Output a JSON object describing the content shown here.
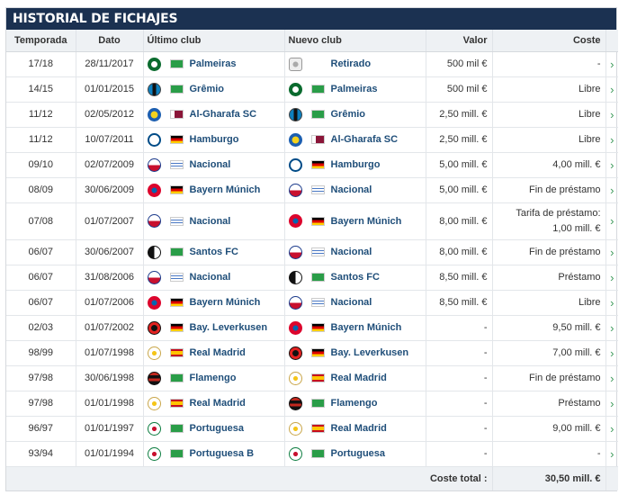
{
  "title": "HISTORIAL DE FICHAJES",
  "headers": {
    "season": "Temporada",
    "date": "Dato",
    "from": "Último club",
    "to": "Nuevo club",
    "value": "Valor",
    "fee": "Coste"
  },
  "colors": {
    "header_bg": "#1b3151",
    "link": "#1f4e79",
    "arrow": "#3d9a5b",
    "flag_brazil": "#2a9d48",
    "flag_germany": "#000000/#dd0000/#ffce00",
    "flag_uruguay": "#ffffff/#4a78c4",
    "flag_spain": "#c60b1e/#ffc400",
    "flag_qatar": "#8a1538"
  },
  "rows": [
    {
      "season": "17/18",
      "date": "28/11/2017",
      "from": "Palmeiras",
      "from_flag": "br",
      "from_crest": "palmeiras",
      "to": "Retirado",
      "to_flag": "",
      "to_crest": "retired",
      "value": "500 mil €",
      "fee": "-"
    },
    {
      "season": "14/15",
      "date": "01/01/2015",
      "from": "Grêmio",
      "from_flag": "br",
      "from_crest": "gremio",
      "to": "Palmeiras",
      "to_flag": "br",
      "to_crest": "palmeiras",
      "value": "500 mil €",
      "fee": "Libre"
    },
    {
      "season": "11/12",
      "date": "02/05/2012",
      "from": "Al-Gharafa SC",
      "from_flag": "qa",
      "from_crest": "algharafa",
      "to": "Grêmio",
      "to_flag": "br",
      "to_crest": "gremio",
      "value": "2,50 mill. €",
      "fee": "Libre"
    },
    {
      "season": "11/12",
      "date": "10/07/2011",
      "from": "Hamburgo",
      "from_flag": "de",
      "from_crest": "hamburgo",
      "to": "Al-Gharafa SC",
      "to_flag": "qa",
      "to_crest": "algharafa",
      "value": "2,50 mill. €",
      "fee": "Libre"
    },
    {
      "season": "09/10",
      "date": "02/07/2009",
      "from": "Nacional",
      "from_flag": "uy",
      "from_crest": "nacional",
      "to": "Hamburgo",
      "to_flag": "de",
      "to_crest": "hamburgo",
      "value": "5,00 mill. €",
      "fee": "4,00 mill. €"
    },
    {
      "season": "08/09",
      "date": "30/06/2009",
      "from": "Bayern Múnich",
      "from_flag": "de",
      "from_crest": "bayern",
      "to": "Nacional",
      "to_flag": "uy",
      "to_crest": "nacional",
      "value": "5,00 mill. €",
      "fee": "Fin de préstamo"
    },
    {
      "season": "07/08",
      "date": "01/07/2007",
      "from": "Nacional",
      "from_flag": "uy",
      "from_crest": "nacional",
      "to": "Bayern Múnich",
      "to_flag": "de",
      "to_crest": "bayern",
      "value": "8,00 mill. €",
      "fee": "Tarifa de préstamo:",
      "fee2": "1,00 mill. €",
      "tall": true
    },
    {
      "season": "06/07",
      "date": "30/06/2007",
      "from": "Santos FC",
      "from_flag": "br",
      "from_crest": "santos",
      "to": "Nacional",
      "to_flag": "uy",
      "to_crest": "nacional",
      "value": "8,00 mill. €",
      "fee": "Fin de préstamo"
    },
    {
      "season": "06/07",
      "date": "31/08/2006",
      "from": "Nacional",
      "from_flag": "uy",
      "from_crest": "nacional",
      "to": "Santos FC",
      "to_flag": "br",
      "to_crest": "santos",
      "value": "8,50 mill. €",
      "fee": "Préstamo"
    },
    {
      "season": "06/07",
      "date": "01/07/2006",
      "from": "Bayern Múnich",
      "from_flag": "de",
      "from_crest": "bayern",
      "to": "Nacional",
      "to_flag": "uy",
      "to_crest": "nacional",
      "value": "8,50 mill. €",
      "fee": "Libre"
    },
    {
      "season": "02/03",
      "date": "01/07/2002",
      "from": "Bay. Leverkusen",
      "from_flag": "de",
      "from_crest": "leverkusen",
      "to": "Bayern Múnich",
      "to_flag": "de",
      "to_crest": "bayern",
      "value": "-",
      "fee": "9,50 mill. €"
    },
    {
      "season": "98/99",
      "date": "01/07/1998",
      "from": "Real Madrid",
      "from_flag": "es",
      "from_crest": "realmadrid",
      "to": "Bay. Leverkusen",
      "to_flag": "de",
      "to_crest": "leverkusen",
      "value": "-",
      "fee": "7,00 mill. €"
    },
    {
      "season": "97/98",
      "date": "30/06/1998",
      "from": "Flamengo",
      "from_flag": "br",
      "from_crest": "flamengo",
      "to": "Real Madrid",
      "to_flag": "es",
      "to_crest": "realmadrid",
      "value": "-",
      "fee": "Fin de préstamo"
    },
    {
      "season": "97/98",
      "date": "01/01/1998",
      "from": "Real Madrid",
      "from_flag": "es",
      "from_crest": "realmadrid",
      "to": "Flamengo",
      "to_flag": "br",
      "to_crest": "flamengo",
      "value": "-",
      "fee": "Préstamo"
    },
    {
      "season": "96/97",
      "date": "01/01/1997",
      "from": "Portuguesa",
      "from_flag": "br",
      "from_crest": "portuguesa",
      "to": "Real Madrid",
      "to_flag": "es",
      "to_crest": "realmadrid",
      "value": "-",
      "fee": "9,00 mill. €"
    },
    {
      "season": "93/94",
      "date": "01/01/1994",
      "from": "Portuguesa B",
      "from_flag": "br",
      "from_crest": "portuguesa",
      "to": "Portuguesa",
      "to_flag": "br",
      "to_crest": "portuguesa",
      "value": "-",
      "fee": "-"
    }
  ],
  "total": {
    "label": "Coste total :",
    "value": "30,50 mill. €"
  },
  "row_arrow": "›"
}
